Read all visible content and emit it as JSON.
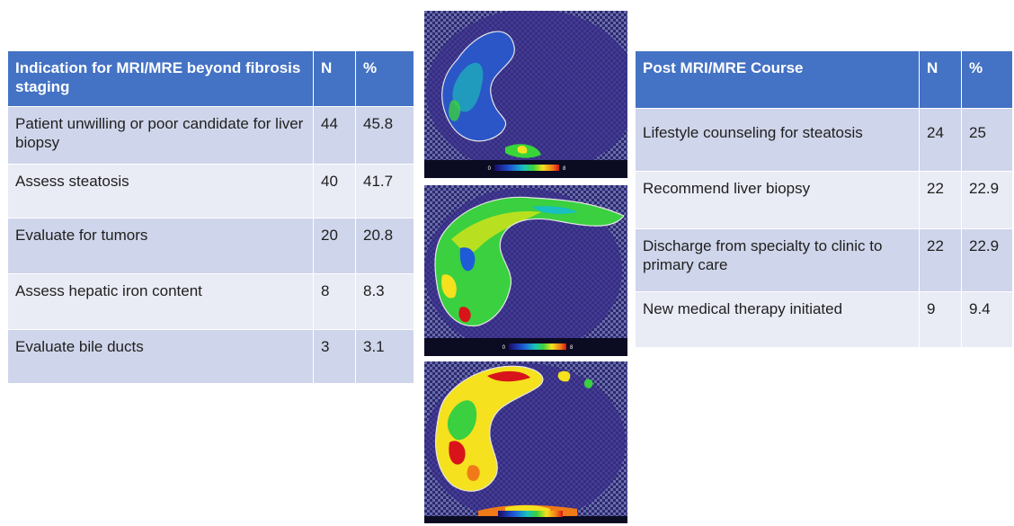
{
  "left_table": {
    "headers": [
      "Indication for MRI/MRE beyond fibrosis staging",
      "N",
      "%"
    ],
    "rows": [
      [
        "Patient unwilling or poor candidate for liver biopsy",
        "44",
        "45.8"
      ],
      [
        "Assess steatosis",
        "40",
        "41.7"
      ],
      [
        "Evaluate for tumors",
        "20",
        "20.8"
      ],
      [
        "Assess hepatic iron content",
        "8",
        "8.3"
      ],
      [
        "Evaluate bile ducts",
        "3",
        "3.1"
      ]
    ]
  },
  "right_table": {
    "headers": [
      "Post MRI/MRE Course",
      "N",
      "%"
    ],
    "rows": [
      [
        "Lifestyle counseling for steatosis",
        "24",
        "25"
      ],
      [
        "Recommend liver biopsy",
        "22",
        "22.9"
      ],
      [
        "Discharge from specialty to clinic to primary care",
        "22",
        "22.9"
      ],
      [
        "New medical therapy initiated",
        "9",
        "9.4"
      ]
    ]
  },
  "elastograms": [
    {
      "scale_min": "0",
      "scale_max": "8"
    },
    {
      "scale_min": "0",
      "scale_max": "8"
    },
    {
      "scale_min": "",
      "scale_max": ""
    }
  ]
}
